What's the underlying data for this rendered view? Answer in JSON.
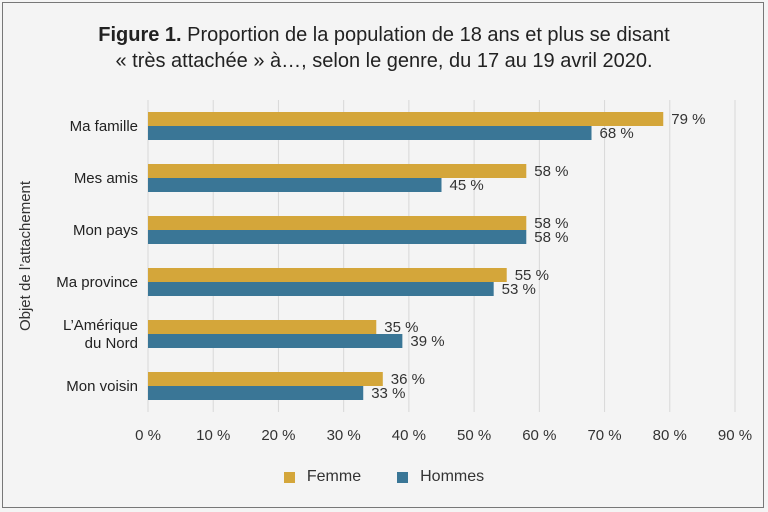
{
  "title": {
    "bold": "Figure 1.",
    "line1": "Proportion de la population de 18 ans et plus se disant",
    "line2": "« très attachée » à…, selon le genre, du 17 au 19 avril 2020."
  },
  "colors": {
    "femme": "#d4a63a",
    "hommes": "#3a7696",
    "grid": "#d8d8d8"
  },
  "chart_data": {
    "type": "bar",
    "orientation": "horizontal",
    "title": "Proportion de la population de 18 ans et plus se disant « très attachée » à…, selon le genre, du 17 au 19 avril 2020.",
    "ylabel": "Objet de l’attachement",
    "xlabel": "",
    "xlim": [
      0,
      90
    ],
    "xticks": [
      "0 %",
      "10 %",
      "20 %",
      "30 %",
      "40 %",
      "50 %",
      "60 %",
      "70 %",
      "80 %",
      "90 %"
    ],
    "categories": [
      [
        "Ma famille"
      ],
      [
        "Mes amis"
      ],
      [
        "Mon pays"
      ],
      [
        "Ma province"
      ],
      [
        "L’Amérique",
        "du Nord"
      ],
      [
        "Mon voisin"
      ]
    ],
    "series": [
      {
        "name": "Femme",
        "values": [
          79,
          58,
          58,
          55,
          35,
          36
        ],
        "labels": [
          "79 %",
          "58 %",
          "58 %",
          "55 %",
          "35 %",
          "36 %"
        ]
      },
      {
        "name": "Hommes",
        "values": [
          68,
          45,
          58,
          53,
          39,
          33
        ],
        "labels": [
          "68 %",
          "45 %",
          "58 %",
          "53 %",
          "39 %",
          "33 %"
        ]
      }
    ],
    "grid": true,
    "legend_position": "bottom"
  }
}
